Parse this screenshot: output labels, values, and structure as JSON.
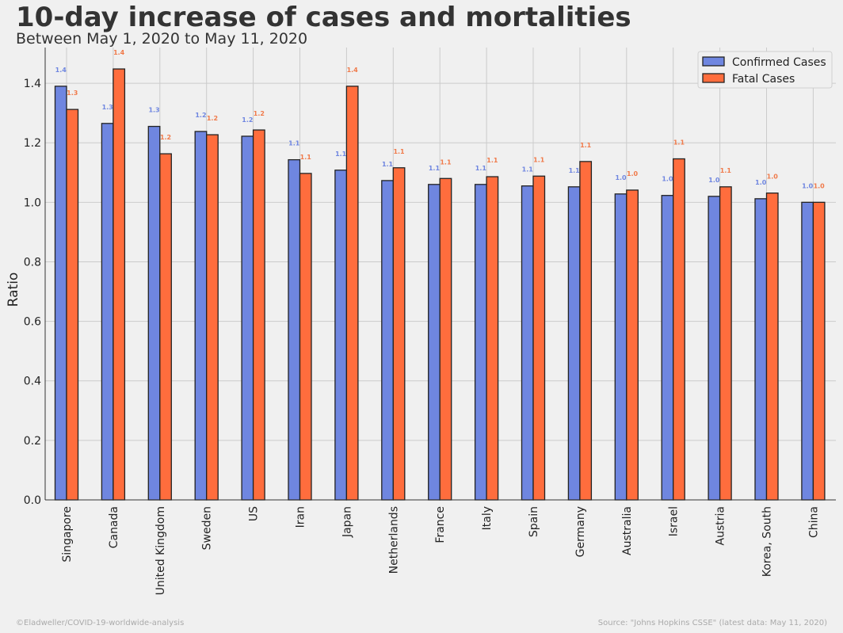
{
  "header": {
    "title": "10-day increase of cases and mortalities",
    "subtitle": "Between May 1, 2020 to May 11, 2020"
  },
  "footer": {
    "left": "©Eladweller/COVID-19-worldwide-analysis",
    "right": "Source: \"Johns Hopkins CSSE\" (latest data: May 11, 2020)"
  },
  "colors": {
    "confirmed": "#6f86e0",
    "fatal": "#ff6d3d",
    "confirmed_label": "#6f86e0",
    "fatal_label": "#f07a4a",
    "grid": "#cbcbcb",
    "edge": "#222222",
    "text": "#222222"
  },
  "chart_data": {
    "type": "bar",
    "title": "10-day increase of cases and mortalities",
    "subtitle": "Between May 1, 2020 to May 11, 2020",
    "xlabel": "",
    "ylabel": "Ratio",
    "ylim": [
      0,
      1.52
    ],
    "yticks": [
      "0.0",
      "0.2",
      "0.4",
      "0.6",
      "0.8",
      "1.0",
      "1.2",
      "1.4"
    ],
    "ytick_values": [
      0,
      0.2,
      0.4,
      0.6,
      0.8,
      1.0,
      1.2,
      1.4
    ],
    "grid": true,
    "legend_position": "top-right",
    "categories": [
      "Singapore",
      "Canada",
      "United Kingdom",
      "Sweden",
      "US",
      "Iran",
      "Japan",
      "Netherlands",
      "France",
      "Italy",
      "Spain",
      "Germany",
      "Australia",
      "Israel",
      "Austria",
      "Korea, South",
      "China"
    ],
    "series": [
      {
        "name": "Confirmed Cases",
        "values": [
          1.39,
          1.265,
          1.255,
          1.238,
          1.222,
          1.143,
          1.108,
          1.073,
          1.06,
          1.06,
          1.055,
          1.052,
          1.028,
          1.023,
          1.02,
          1.012,
          1.0
        ],
        "labels": [
          "1.4",
          "1.3",
          "1.3",
          "1.2",
          "1.2",
          "1.1",
          "1.1",
          "1.1",
          "1.1",
          "1.1",
          "1.1",
          "1.1",
          "1.0",
          "1.0",
          "1.0",
          "1.0",
          "1.0"
        ]
      },
      {
        "name": "Fatal Cases",
        "values": [
          1.312,
          1.448,
          1.163,
          1.227,
          1.243,
          1.097,
          1.39,
          1.116,
          1.08,
          1.086,
          1.088,
          1.137,
          1.041,
          1.146,
          1.052,
          1.031,
          1.0
        ],
        "labels": [
          "1.3",
          "1.4",
          "1.2",
          "1.2",
          "1.2",
          "1.1",
          "1.4",
          "1.1",
          "1.1",
          "1.1",
          "1.1",
          "1.1",
          "1.0",
          "1.1",
          "1.1",
          "1.0",
          "1.0"
        ]
      }
    ]
  }
}
